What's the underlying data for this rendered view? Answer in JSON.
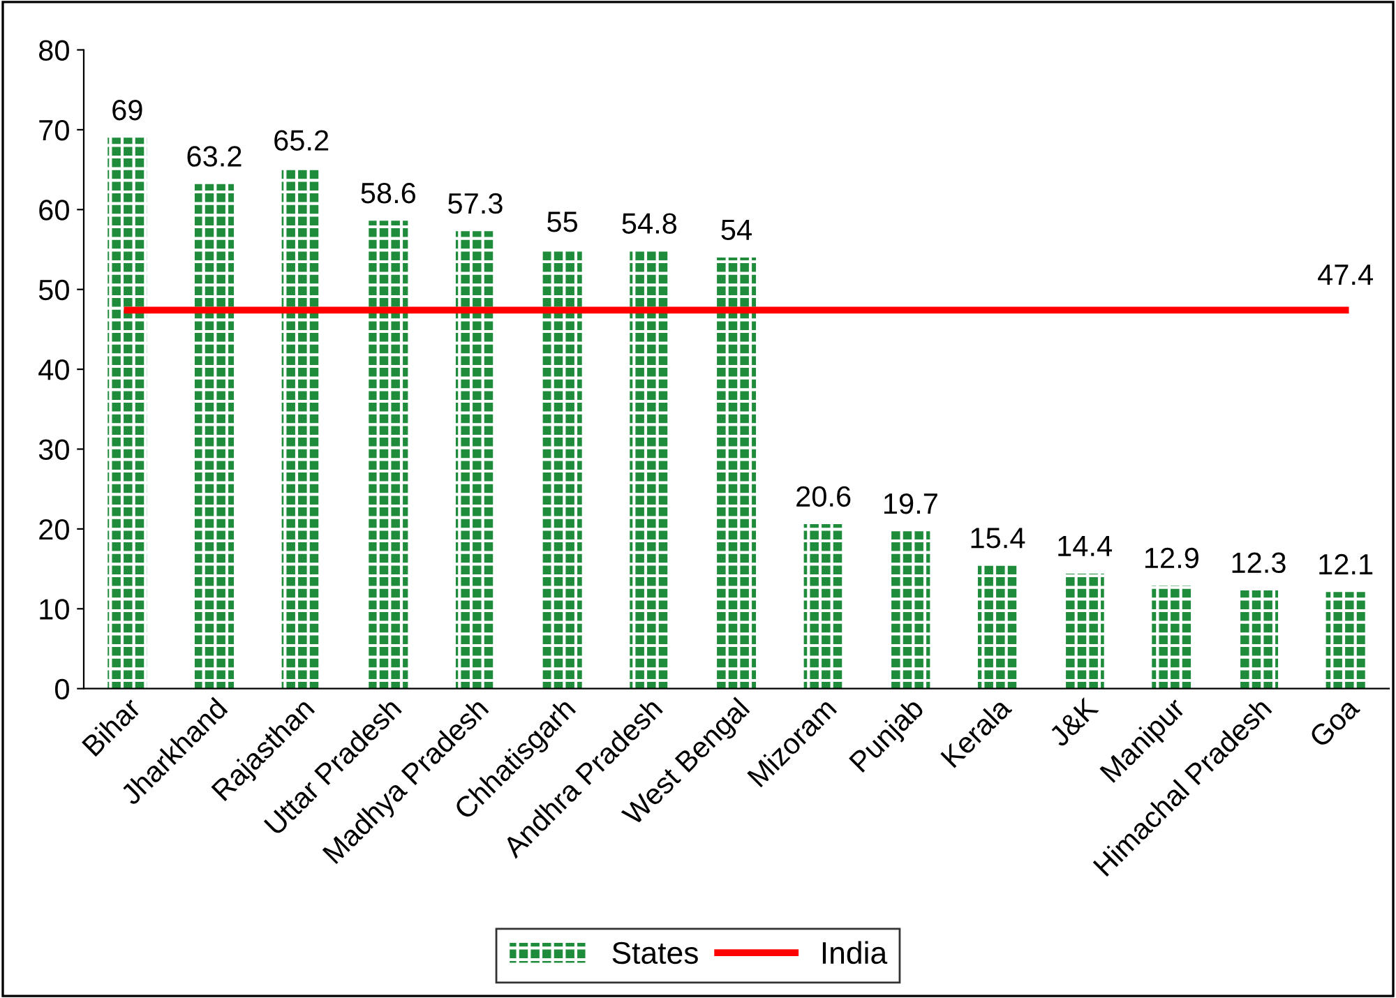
{
  "chart_data": {
    "type": "bar",
    "categories": [
      "Bihar",
      "Jharkhand",
      "Rajasthan",
      "Uttar Pradesh",
      "Madhya Pradesh",
      "Chhatisgarh",
      "Andhra Pradesh",
      "West Bengal",
      "Mizoram",
      "Punjab",
      "Kerala",
      "J&K",
      "Manipur",
      "Himachal Pradesh",
      "Goa"
    ],
    "series": [
      {
        "name": "States",
        "color": "#1e8c3a",
        "values": [
          69,
          63.2,
          65.2,
          58.6,
          57.3,
          55,
          54.8,
          54,
          20.6,
          19.7,
          15.4,
          14.4,
          12.9,
          12.3,
          12.1
        ],
        "value_labels": [
          "69",
          "63.2",
          "65.2",
          "58.6",
          "57.3",
          "55",
          "54.8",
          "54",
          "20.6",
          "19.7",
          "15.4",
          "14.4",
          "12.9",
          "12.3",
          "12.1"
        ]
      },
      {
        "name": "India",
        "type": "line",
        "color": "#ff0000",
        "values": [
          47.4,
          47.4,
          47.4,
          47.4,
          47.4,
          47.4,
          47.4,
          47.4,
          47.4,
          47.4,
          47.4,
          47.4,
          47.4,
          47.4,
          47.4
        ],
        "value_labels": [
          null,
          null,
          null,
          null,
          null,
          null,
          null,
          null,
          null,
          null,
          null,
          null,
          null,
          null,
          "47.4"
        ]
      }
    ],
    "ylim": [
      0,
      80
    ],
    "yticks": [
      0,
      10,
      20,
      30,
      40,
      50,
      60,
      70,
      80
    ],
    "grid": false,
    "legend": "bottom",
    "marker": "none",
    "line_style": "solid"
  }
}
